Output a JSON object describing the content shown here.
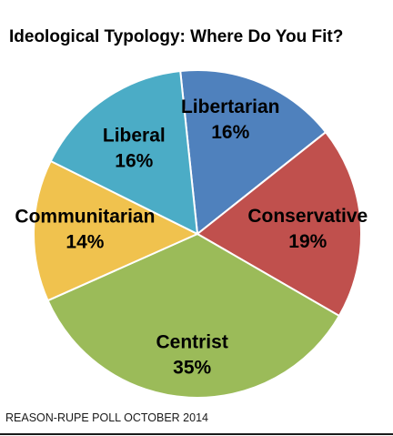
{
  "chart_data": {
    "type": "pie",
    "title": "Ideological Typology: Where Do You Fit?",
    "source": "REASON-RUPE POLL OCTOBER 2014",
    "slices": [
      {
        "name": "Libertarian",
        "value": 16,
        "label": "16%",
        "color": "#4F81BD"
      },
      {
        "name": "Conservative",
        "value": 19,
        "label": "19%",
        "color": "#C0504D"
      },
      {
        "name": "Centrist",
        "value": 35,
        "label": "35%",
        "color": "#9BBB59"
      },
      {
        "name": "Communitarian",
        "value": 14,
        "label": "14%",
        "color": "#F0C24E"
      },
      {
        "name": "Liberal",
        "value": 16,
        "label": "16%",
        "color": "#4BACC6"
      }
    ]
  }
}
